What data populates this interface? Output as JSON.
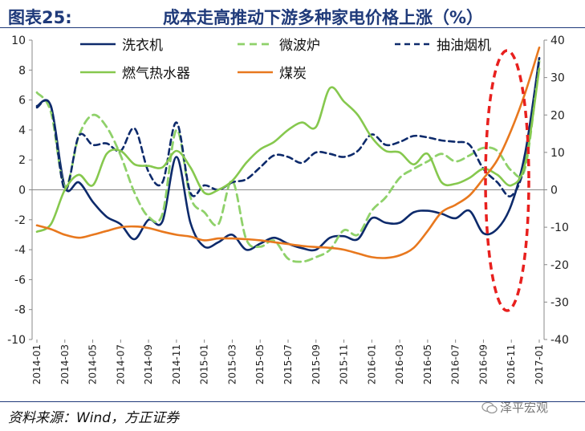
{
  "title": {
    "prefix": "图表25:",
    "text": "成本走高推动下游多种家电价格上涨（%）"
  },
  "source": "资料来源：Wind，方正证券",
  "watermark": "泽平宏观",
  "colors": {
    "washer": "#0d2a6b",
    "microwave": "#8fd16a",
    "hood": "#0d2a6b",
    "gas_heater": "#86c84e",
    "coal": "#e8781e",
    "ellipse": "#e8201e",
    "axis": "#888888"
  },
  "chart_data": {
    "type": "line",
    "title": "成本走高推动下游多种家电价格上涨（%）",
    "x": [
      "2014-01",
      "2014-02",
      "2014-03",
      "2014-04",
      "2014-05",
      "2014-06",
      "2014-07",
      "2014-08",
      "2014-09",
      "2014-10",
      "2014-11",
      "2014-12",
      "2015-01",
      "2015-02",
      "2015-03",
      "2015-04",
      "2015-05",
      "2015-06",
      "2015-07",
      "2015-08",
      "2015-09",
      "2015-10",
      "2015-11",
      "2015-12",
      "2016-01",
      "2016-02",
      "2016-03",
      "2016-04",
      "2016-05",
      "2016-06",
      "2016-07",
      "2016-08",
      "2016-09",
      "2016-10",
      "2016-11",
      "2016-12",
      "2017-01"
    ],
    "xticks": [
      "2014-01",
      "2014-03",
      "2014-05",
      "2014-07",
      "2014-09",
      "2014-11",
      "2015-01",
      "2015-03",
      "2015-05",
      "2015-07",
      "2015-09",
      "2015-11",
      "2016-01",
      "2016-03",
      "2016-05",
      "2016-07",
      "2016-09",
      "2016-11",
      "2017-01"
    ],
    "y_left": {
      "min": -10,
      "max": 10,
      "ticks": [
        10,
        8,
        6,
        4,
        2,
        0,
        -2,
        -4,
        -6,
        -8,
        -10
      ]
    },
    "y_right": {
      "min": -40,
      "max": 40,
      "ticks": [
        40,
        30,
        20,
        10,
        0,
        -10,
        -20,
        -30,
        -40
      ]
    },
    "legend_placement": "top",
    "series": [
      {
        "key": "washer",
        "name": "洗衣机",
        "axis": "left",
        "style": "solid",
        "values": [
          5.6,
          5.6,
          0.2,
          0.5,
          -0.8,
          -1.8,
          -2.3,
          -3.3,
          -2.0,
          -2.1,
          2.2,
          -2.2,
          -3.8,
          -3.5,
          -3.0,
          -4.0,
          -3.6,
          -3.2,
          -3.6,
          -3.9,
          -4.0,
          -3.2,
          -3.1,
          -3.3,
          -1.9,
          -2.2,
          -2.2,
          -1.5,
          -1.4,
          -1.6,
          -1.9,
          -1.4,
          -2.9,
          -2.6,
          -1.0,
          2.5,
          8.8
        ]
      },
      {
        "key": "microwave",
        "name": "微波炉",
        "axis": "left",
        "style": "dash",
        "values": [
          6.5,
          5.2,
          0.2,
          3.6,
          5.0,
          4.2,
          2.3,
          -0.2,
          -1.8,
          -1.6,
          4.0,
          -0.5,
          -1.5,
          -2.3,
          0.6,
          -3.3,
          -3.8,
          -3.4,
          -4.6,
          -4.8,
          -4.5,
          -4.0,
          -2.7,
          -3.0,
          -1.4,
          -0.5,
          0.8,
          1.4,
          1.9,
          2.4,
          1.9,
          2.3,
          2.8,
          2.6,
          1.3,
          1.5,
          8.6
        ]
      },
      {
        "key": "hood",
        "name": "抽油烟机",
        "axis": "left",
        "style": "dash",
        "values": [
          5.5,
          5.6,
          0.0,
          3.6,
          3.0,
          3.1,
          2.6,
          4.1,
          1.2,
          0.5,
          4.5,
          -0.2,
          0.3,
          0.0,
          0.5,
          0.7,
          1.5,
          2.3,
          2.2,
          1.8,
          2.5,
          2.4,
          2.2,
          2.6,
          3.7,
          3.0,
          3.2,
          3.6,
          3.5,
          3.3,
          3.2,
          3.0,
          1.4,
          0.5,
          -0.4,
          1.9,
          8.8
        ]
      },
      {
        "key": "gas_heater",
        "name": "燃气热水器",
        "axis": "left",
        "style": "solid",
        "values": [
          -2.8,
          -2.3,
          0.0,
          1.0,
          0.3,
          2.4,
          2.6,
          1.7,
          1.6,
          1.5,
          2.6,
          1.5,
          -0.2,
          0.0,
          0.6,
          1.8,
          2.7,
          3.2,
          4.0,
          4.5,
          4.2,
          6.8,
          5.9,
          5.0,
          3.5,
          2.6,
          2.5,
          1.7,
          2.4,
          0.5,
          0.4,
          0.8,
          1.4,
          1.0,
          0.3,
          1.8,
          8.1
        ]
      },
      {
        "key": "coal",
        "name": "煤炭",
        "axis": "right",
        "style": "solid",
        "values": [
          -9.5,
          -10.5,
          -12,
          -12.8,
          -12,
          -11,
          -10,
          -9.8,
          -10.2,
          -11.2,
          -12,
          -12.5,
          -13.5,
          -13,
          -13,
          -13.2,
          -13.5,
          -14,
          -14.5,
          -15,
          -15.3,
          -15.5,
          -16,
          -17,
          -18,
          -18.2,
          -17.5,
          -15.5,
          -11,
          -6,
          -4,
          -1.5,
          3,
          8,
          16,
          26,
          38
        ]
      }
    ]
  }
}
